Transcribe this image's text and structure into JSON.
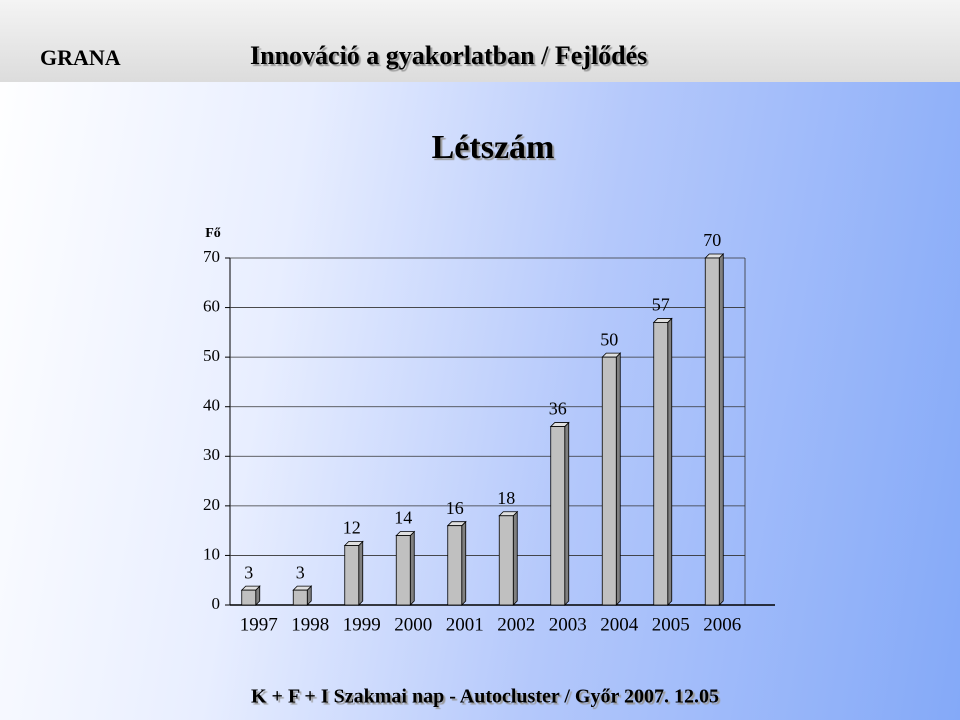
{
  "header": {
    "brand": "GRANA",
    "title": "Innováció a gyakorlatban / Fejlődés"
  },
  "chart_data": {
    "type": "bar",
    "title": "Létszám",
    "y_label": "Fő",
    "categories": [
      "1997",
      "1998",
      "1999",
      "2000",
      "2001",
      "2002",
      "2003",
      "2004",
      "2005",
      "2006"
    ],
    "values": [
      3,
      3,
      12,
      14,
      16,
      18,
      36,
      50,
      57,
      70
    ],
    "color": "#c0c0c0",
    "ylim": [
      0,
      70
    ],
    "yticks": [
      0,
      10,
      20,
      30,
      40,
      50,
      60,
      70
    ],
    "grid": true
  },
  "footer": {
    "text": "K + F + I Szakmai nap  -  Autocluster  /  Győr 2007. 12.05"
  }
}
